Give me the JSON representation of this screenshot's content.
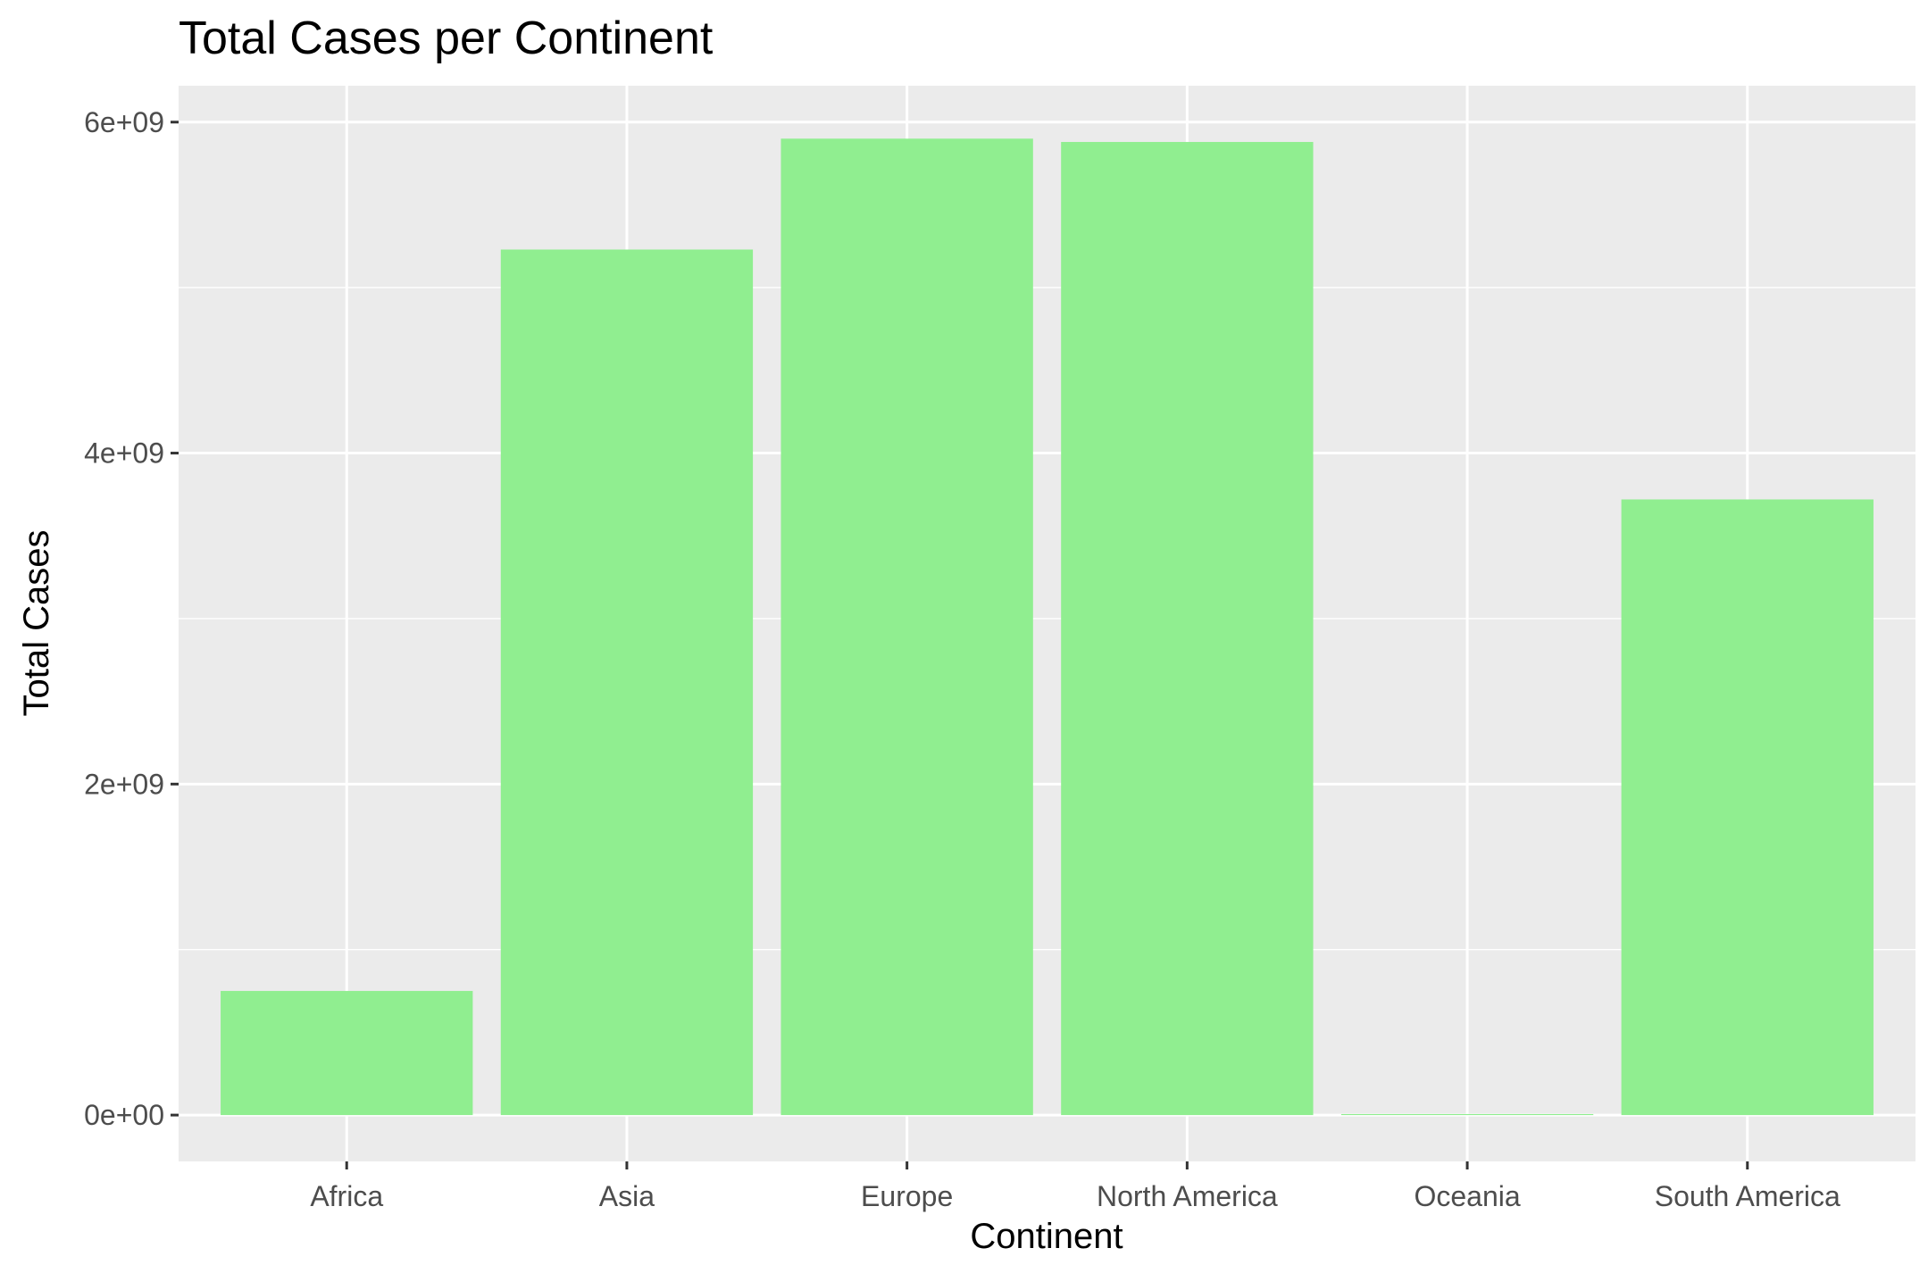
{
  "chart_data": {
    "type": "bar",
    "title": "Total Cases per Continent",
    "xlabel": "Continent",
    "ylabel": "Total Cases",
    "categories": [
      "Africa",
      "Asia",
      "Europe",
      "North America",
      "Oceania",
      "South America"
    ],
    "values": [
      750000000,
      5230000000,
      5900000000,
      5880000000,
      6000000,
      3720000000
    ],
    "ylim": [
      -280000000,
      6220000000
    ],
    "yticks": [
      0,
      2000000000,
      4000000000,
      6000000000
    ],
    "ytick_labels": [
      "0e+00",
      "2e+09",
      "4e+09",
      "6e+09"
    ],
    "grid": true,
    "legend": "none",
    "colors": {
      "bar": "#90EE90",
      "panel": "#EBEBEB",
      "grid": "#FFFFFF",
      "tick": "#333333",
      "tick_label": "#4D4D4D"
    }
  }
}
